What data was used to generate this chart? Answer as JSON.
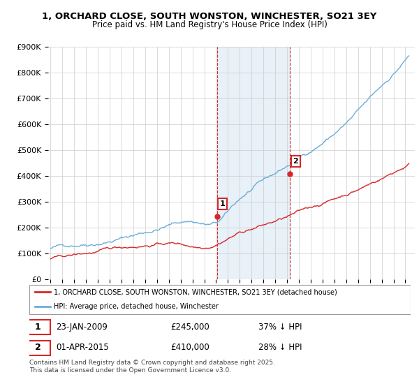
{
  "title": "1, ORCHARD CLOSE, SOUTH WONSTON, WINCHESTER, SO21 3EY",
  "subtitle": "Price paid vs. HM Land Registry's House Price Index (HPI)",
  "ylim": [
    0,
    900000
  ],
  "yticks": [
    0,
    100000,
    200000,
    300000,
    400000,
    500000,
    600000,
    700000,
    800000,
    900000
  ],
  "ytick_labels": [
    "£0",
    "£100K",
    "£200K",
    "£300K",
    "£400K",
    "£500K",
    "£600K",
    "£700K",
    "£800K",
    "£900K"
  ],
  "xlim_start": 1994.8,
  "xlim_end": 2025.8,
  "hpi_color": "#6baed6",
  "price_color": "#d62728",
  "sale1_date": 2009.07,
  "sale1_price": 245000,
  "sale1_label": "1",
  "sale2_date": 2015.25,
  "sale2_price": 410000,
  "sale2_label": "2",
  "legend_line1": "1, ORCHARD CLOSE, SOUTH WONSTON, WINCHESTER, SO21 3EY (detached house)",
  "legend_line2": "HPI: Average price, detached house, Winchester",
  "table_row1": [
    "1",
    "23-JAN-2009",
    "£245,000",
    "37% ↓ HPI"
  ],
  "table_row2": [
    "2",
    "01-APR-2015",
    "£410,000",
    "28% ↓ HPI"
  ],
  "footnote": "Contains HM Land Registry data © Crown copyright and database right 2025.\nThis data is licensed under the Open Government Licence v3.0.",
  "bg_color": "#ffffff",
  "grid_color": "#cccccc",
  "shade_color": "#dce9f5"
}
